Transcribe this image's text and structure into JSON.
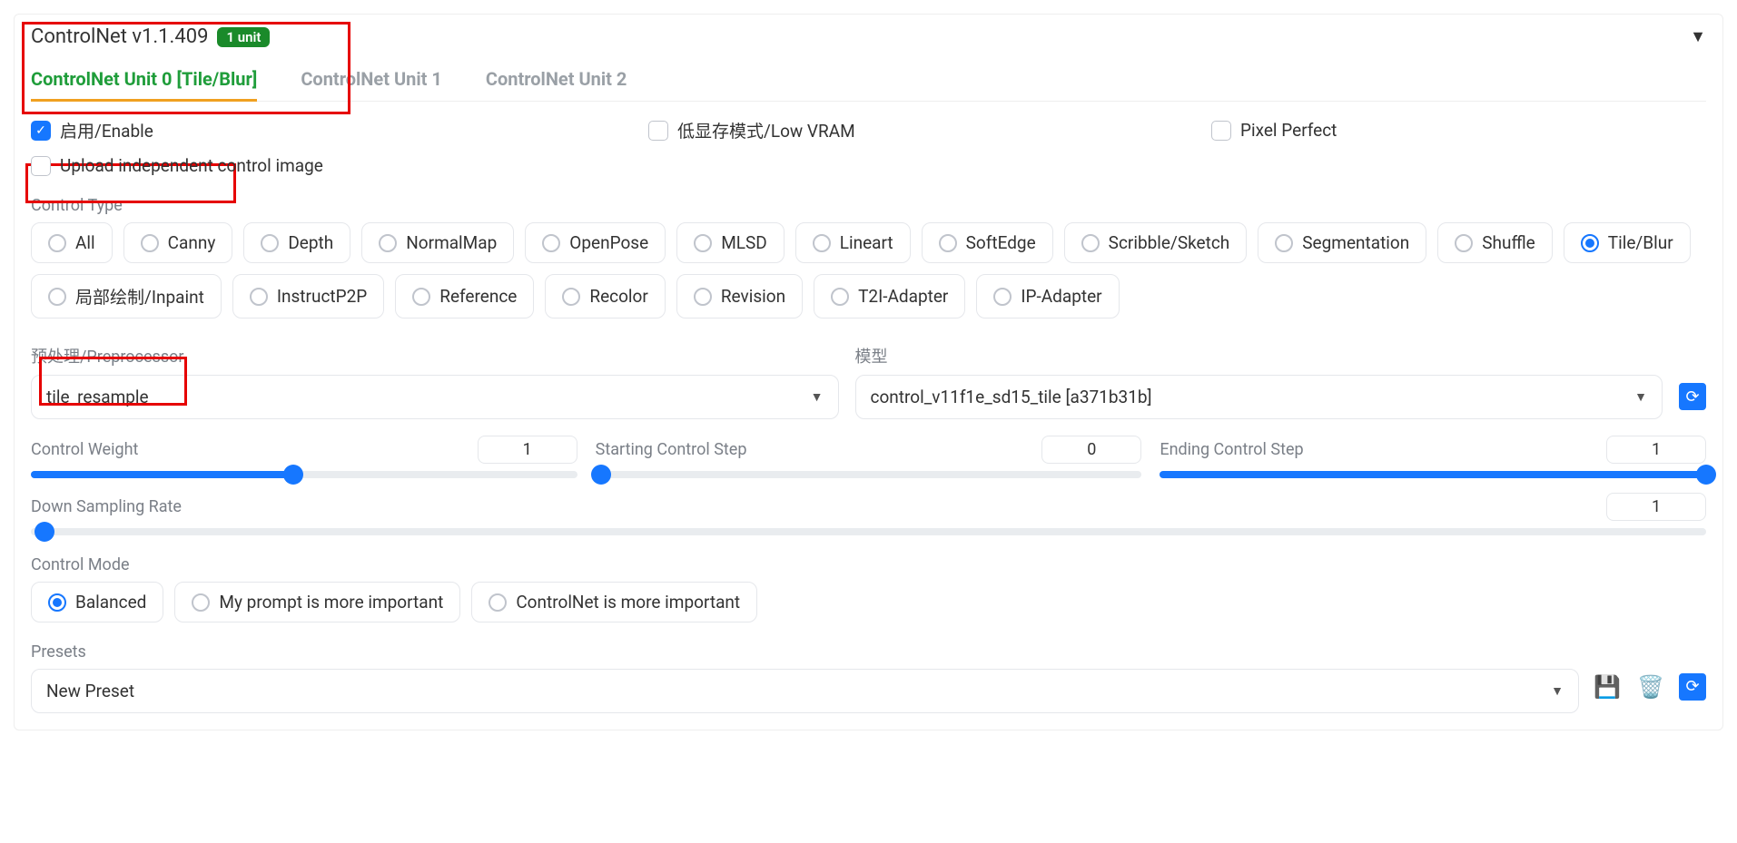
{
  "header": {
    "title": "ControlNet v1.1.409",
    "badge": "1 unit",
    "collapse_glyph": "▼"
  },
  "tabs": [
    {
      "label": "ControlNet Unit 0 [Tile/Blur]",
      "active": true
    },
    {
      "label": "ControlNet Unit 1",
      "active": false
    },
    {
      "label": "ControlNet Unit 2",
      "active": false
    }
  ],
  "checkboxes": {
    "enable": {
      "label": "启用/Enable",
      "checked": true
    },
    "lowvram": {
      "label": "低显存模式/Low VRAM",
      "checked": false
    },
    "pixel": {
      "label": "Pixel Perfect",
      "checked": false
    },
    "upload": {
      "label": "Upload independent control image",
      "checked": false
    }
  },
  "control_type": {
    "label": "Control Type",
    "options": [
      "All",
      "Canny",
      "Depth",
      "NormalMap",
      "OpenPose",
      "MLSD",
      "Lineart",
      "SoftEdge",
      "Scribble/Sketch",
      "Segmentation",
      "Shuffle",
      "Tile/Blur",
      "局部绘制/Inpaint",
      "InstructP2P",
      "Reference",
      "Recolor",
      "Revision",
      "T2I-Adapter",
      "IP-Adapter"
    ],
    "selected": "Tile/Blur"
  },
  "preprocessor": {
    "label": "预处理/Preprocessor",
    "value": "tile_resample"
  },
  "model": {
    "label": "模型",
    "value": "control_v11f1e_sd15_tile [a371b31b]"
  },
  "sliders": {
    "weight": {
      "label": "Control Weight",
      "value": "1",
      "fill_pct": 48
    },
    "start": {
      "label": "Starting Control Step",
      "value": "0",
      "fill_pct": 0
    },
    "end": {
      "label": "Ending Control Step",
      "value": "1",
      "fill_pct": 100
    },
    "down": {
      "label": "Down Sampling Rate",
      "value": "1",
      "fill_pct": 0
    }
  },
  "control_mode": {
    "label": "Control Mode",
    "options": [
      "Balanced",
      "My prompt is more important",
      "ControlNet is more important"
    ],
    "selected": "Balanced"
  },
  "presets": {
    "label": "Presets",
    "value": "New Preset"
  },
  "highlight_color": "#e60000",
  "accent_color": "#1677ff"
}
